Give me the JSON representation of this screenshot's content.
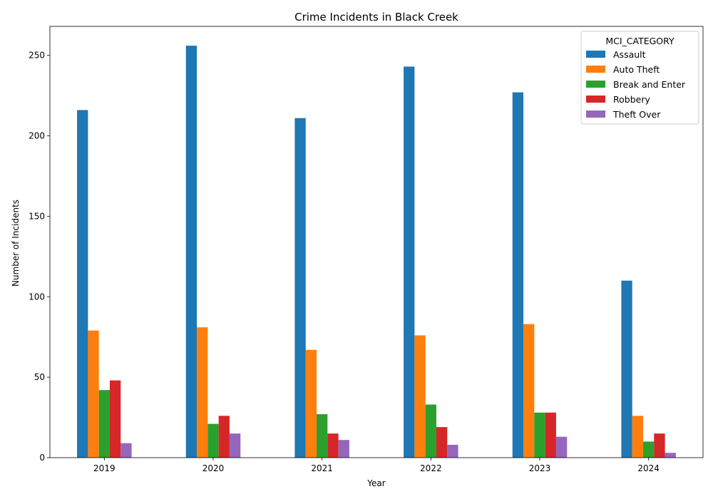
{
  "chart_data": {
    "type": "bar",
    "title": "Crime Incidents in Black Creek",
    "xlabel": "Year",
    "ylabel": "Number of Incidents",
    "categories": [
      "2019",
      "2020",
      "2021",
      "2022",
      "2023",
      "2024"
    ],
    "ylim": [
      0,
      268
    ],
    "yticks": [
      0,
      50,
      100,
      150,
      200,
      250
    ],
    "grid": false,
    "legend": {
      "title": "MCI_CATEGORY",
      "position": "top-right"
    },
    "series": [
      {
        "name": "Assault",
        "color": "#1f77b4",
        "values": [
          216,
          256,
          211,
          243,
          227,
          110
        ]
      },
      {
        "name": "Auto Theft",
        "color": "#ff7f0e",
        "values": [
          79,
          81,
          67,
          76,
          83,
          26
        ]
      },
      {
        "name": "Break and Enter",
        "color": "#2ca02c",
        "values": [
          42,
          21,
          27,
          33,
          28,
          10
        ]
      },
      {
        "name": "Robbery",
        "color": "#d62728",
        "values": [
          48,
          26,
          15,
          19,
          28,
          15
        ]
      },
      {
        "name": "Theft Over",
        "color": "#9467bd",
        "values": [
          9,
          15,
          11,
          8,
          13,
          3
        ]
      }
    ]
  }
}
